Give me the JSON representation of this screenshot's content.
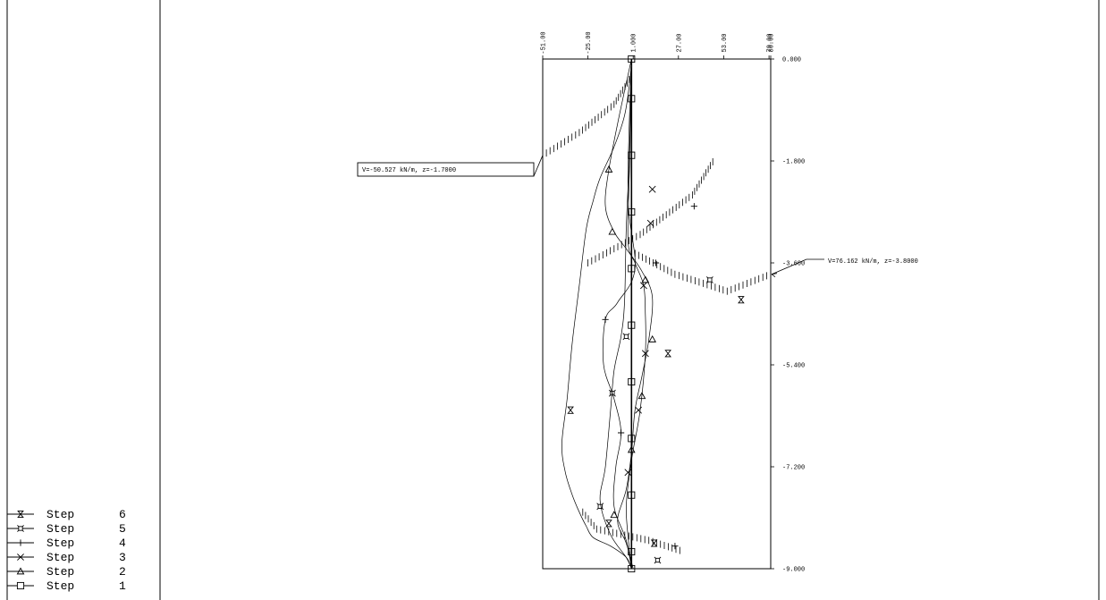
{
  "chart_data": {
    "type": "line",
    "title": "",
    "xlabel": "",
    "ylabel": "",
    "orientation": "depth-profile",
    "xlim": [
      -51.0,
      80.0
    ],
    "ylim": [
      0.0,
      -9.0
    ],
    "x_ticks": [
      {
        "value": -51.0,
        "label": "-51.00"
      },
      {
        "value": -25.0,
        "label": "-25.00"
      },
      {
        "value": 1.0,
        "label": "1.000"
      },
      {
        "value": 27.0,
        "label": "27.00"
      },
      {
        "value": 53.0,
        "label": "53.00"
      },
      {
        "value": 79.0,
        "label": "79.00"
      },
      {
        "value": 80.0,
        "label": "80.00"
      }
    ],
    "y_ticks": [
      {
        "value": 0.0,
        "label": "0.000"
      },
      {
        "value": -1.8,
        "label": "-1.800"
      },
      {
        "value": -3.6,
        "label": "-3.600"
      },
      {
        "value": -5.4,
        "label": "-5.400"
      },
      {
        "value": -7.2,
        "label": "-7.200"
      },
      {
        "value": -9.0,
        "label": "-9.000"
      }
    ],
    "grid": false,
    "legend_position": "bottom-left",
    "series": [
      {
        "name": "Step 1",
        "number": "1",
        "marker": "square",
        "color": "#000000",
        "points": [
          [
            0,
            0
          ],
          [
            0,
            -0.7
          ],
          [
            0,
            -1.7
          ],
          [
            0,
            -2.7
          ],
          [
            0,
            -3.7
          ],
          [
            0,
            -4.7
          ],
          [
            0,
            -5.7
          ],
          [
            0,
            -6.7
          ],
          [
            0,
            -7.7
          ],
          [
            0,
            -8.7
          ],
          [
            0,
            -9.0
          ]
        ]
      },
      {
        "name": "Step 2",
        "number": "2",
        "marker": "triangle",
        "color": "#000000",
        "points": [
          [
            0,
            0
          ],
          [
            -7,
            -1
          ],
          [
            -13,
            -1.95
          ],
          [
            -15,
            -2.6
          ],
          [
            -10,
            -3.05
          ],
          [
            -3,
            -3.35
          ],
          [
            6,
            -3.75
          ],
          [
            12,
            -4.2
          ],
          [
            10,
            -4.95
          ],
          [
            6,
            -5.6
          ],
          [
            2,
            -6.2
          ],
          [
            0,
            -6.95
          ],
          [
            -3,
            -7.6
          ],
          [
            -8,
            -8.15
          ],
          [
            -3,
            -8.55
          ],
          [
            1,
            -9.0
          ]
        ]
      },
      {
        "name": "Step 3",
        "number": "3",
        "marker": "x",
        "color": "#000000",
        "points": [
          [
            0,
            0
          ],
          [
            -1,
            -1.8
          ],
          [
            -2,
            -3.2
          ],
          [
            2,
            -3.6
          ],
          [
            7,
            -4.0
          ],
          [
            8,
            -4.5
          ],
          [
            8,
            -5.2
          ],
          [
            5,
            -6.2
          ],
          [
            1,
            -6.9
          ],
          [
            -1,
            -7.3
          ],
          [
            -3,
            -8.0
          ],
          [
            0,
            -9.0
          ]
        ]
      },
      {
        "name": "Step 4",
        "number": "4",
        "marker": "plus",
        "color": "#000000",
        "points": [
          [
            0,
            0
          ],
          [
            -2,
            -2.4
          ],
          [
            2,
            -3.7
          ],
          [
            -8,
            -4.3
          ],
          [
            -15,
            -4.6
          ],
          [
            -16,
            -5.4
          ],
          [
            -10,
            -6.0
          ],
          [
            -6,
            -6.6
          ],
          [
            -9,
            -7.2
          ],
          [
            -10,
            -7.9
          ],
          [
            -3,
            -8.5
          ],
          [
            0,
            -9.0
          ]
        ]
      },
      {
        "name": "Step 5",
        "number": "5",
        "marker": "box",
        "color": "#000000",
        "points": [
          [
            0,
            0
          ],
          [
            -1,
            -1.5
          ],
          [
            -3,
            -3.0
          ],
          [
            -4,
            -4.3
          ],
          [
            -6,
            -4.9
          ],
          [
            -10,
            -5.5
          ],
          [
            -12,
            -6.2
          ],
          [
            -15,
            -7.2
          ],
          [
            -18,
            -7.8
          ],
          [
            -12,
            -8.4
          ],
          [
            -3,
            -8.8
          ],
          [
            0,
            -9.0
          ]
        ]
      },
      {
        "name": "Step 6",
        "number": "6",
        "marker": "hourglass",
        "color": "#000000",
        "points": [
          [
            0,
            0
          ],
          [
            -1,
            -0.4
          ],
          [
            -4,
            -1.0
          ],
          [
            -10,
            -1.55
          ],
          [
            -18,
            -2.1
          ],
          [
            -22,
            -2.5
          ],
          [
            -26,
            -3.0
          ],
          [
            -30,
            -4.0
          ],
          [
            -34,
            -5.0
          ],
          [
            -37,
            -6.0
          ],
          [
            -40,
            -6.8
          ],
          [
            -38,
            -7.3
          ],
          [
            -34,
            -7.7
          ],
          [
            -30,
            -8.0
          ],
          [
            -26,
            -8.25
          ],
          [
            -22,
            -8.45
          ],
          [
            -12,
            -8.6
          ],
          [
            -3,
            -8.8
          ],
          [
            0,
            -9.0
          ]
        ]
      }
    ],
    "envelope_markers": [
      {
        "series": "Step 6",
        "points": [
          [
            -35,
            -6.2
          ],
          [
            -13,
            -8.2
          ],
          [
            21,
            -5.2
          ],
          [
            63,
            -4.25
          ],
          [
            13,
            -8.55
          ]
        ]
      },
      {
        "series": "Step 5",
        "points": [
          [
            -11,
            -5.9
          ],
          [
            -3,
            -4.9
          ],
          [
            -18,
            -7.9
          ],
          [
            45,
            -3.9
          ],
          [
            15,
            -8.85
          ]
        ]
      },
      {
        "series": "Step 4",
        "points": [
          [
            -15,
            -4.6
          ],
          [
            36,
            -2.6
          ],
          [
            14,
            -3.6
          ],
          [
            -6,
            -6.6
          ],
          [
            25,
            -8.6
          ]
        ]
      },
      {
        "series": "Step 3",
        "points": [
          [
            12,
            -2.3
          ],
          [
            11,
            -2.9
          ],
          [
            7,
            -4.0
          ],
          [
            8,
            -5.2
          ],
          [
            4,
            -6.2
          ],
          [
            -2,
            -7.3
          ]
        ]
      },
      {
        "series": "Step 2",
        "points": [
          [
            -13,
            -1.95
          ],
          [
            -11,
            -3.05
          ],
          [
            -10,
            -8.05
          ],
          [
            8,
            -3.9
          ],
          [
            12,
            -4.95
          ],
          [
            6,
            -5.95
          ],
          [
            0,
            -6.9
          ]
        ]
      }
    ],
    "dashed_traces": [
      {
        "name": "left-envelope",
        "points": [
          [
            0,
            -0.3
          ],
          [
            -10,
            -0.8
          ],
          [
            -30,
            -1.3
          ],
          [
            -51,
            -1.7
          ]
        ]
      },
      {
        "name": "right-envelope",
        "points": [
          [
            0,
            -3.4
          ],
          [
            25,
            -3.8
          ],
          [
            55,
            -4.1
          ],
          [
            80,
            -3.8
          ]
        ]
      },
      {
        "name": "upper-right",
        "points": [
          [
            -25,
            -3.6
          ],
          [
            5,
            -3.1
          ],
          [
            35,
            -2.4
          ],
          [
            48,
            -1.75
          ]
        ]
      },
      {
        "name": "lower-scatter",
        "points": [
          [
            -28,
            -8.0
          ],
          [
            -20,
            -8.3
          ],
          [
            10,
            -8.5
          ],
          [
            30,
            -8.7
          ]
        ]
      }
    ],
    "annotations": [
      {
        "text": "V=-50.527 kN/m, z=-1.7000",
        "x": -50.527,
        "y": -1.7
      },
      {
        "text": "V=76.162 kN/m, z=-3.8000",
        "x": 76.162,
        "y": -3.8
      }
    ]
  }
}
